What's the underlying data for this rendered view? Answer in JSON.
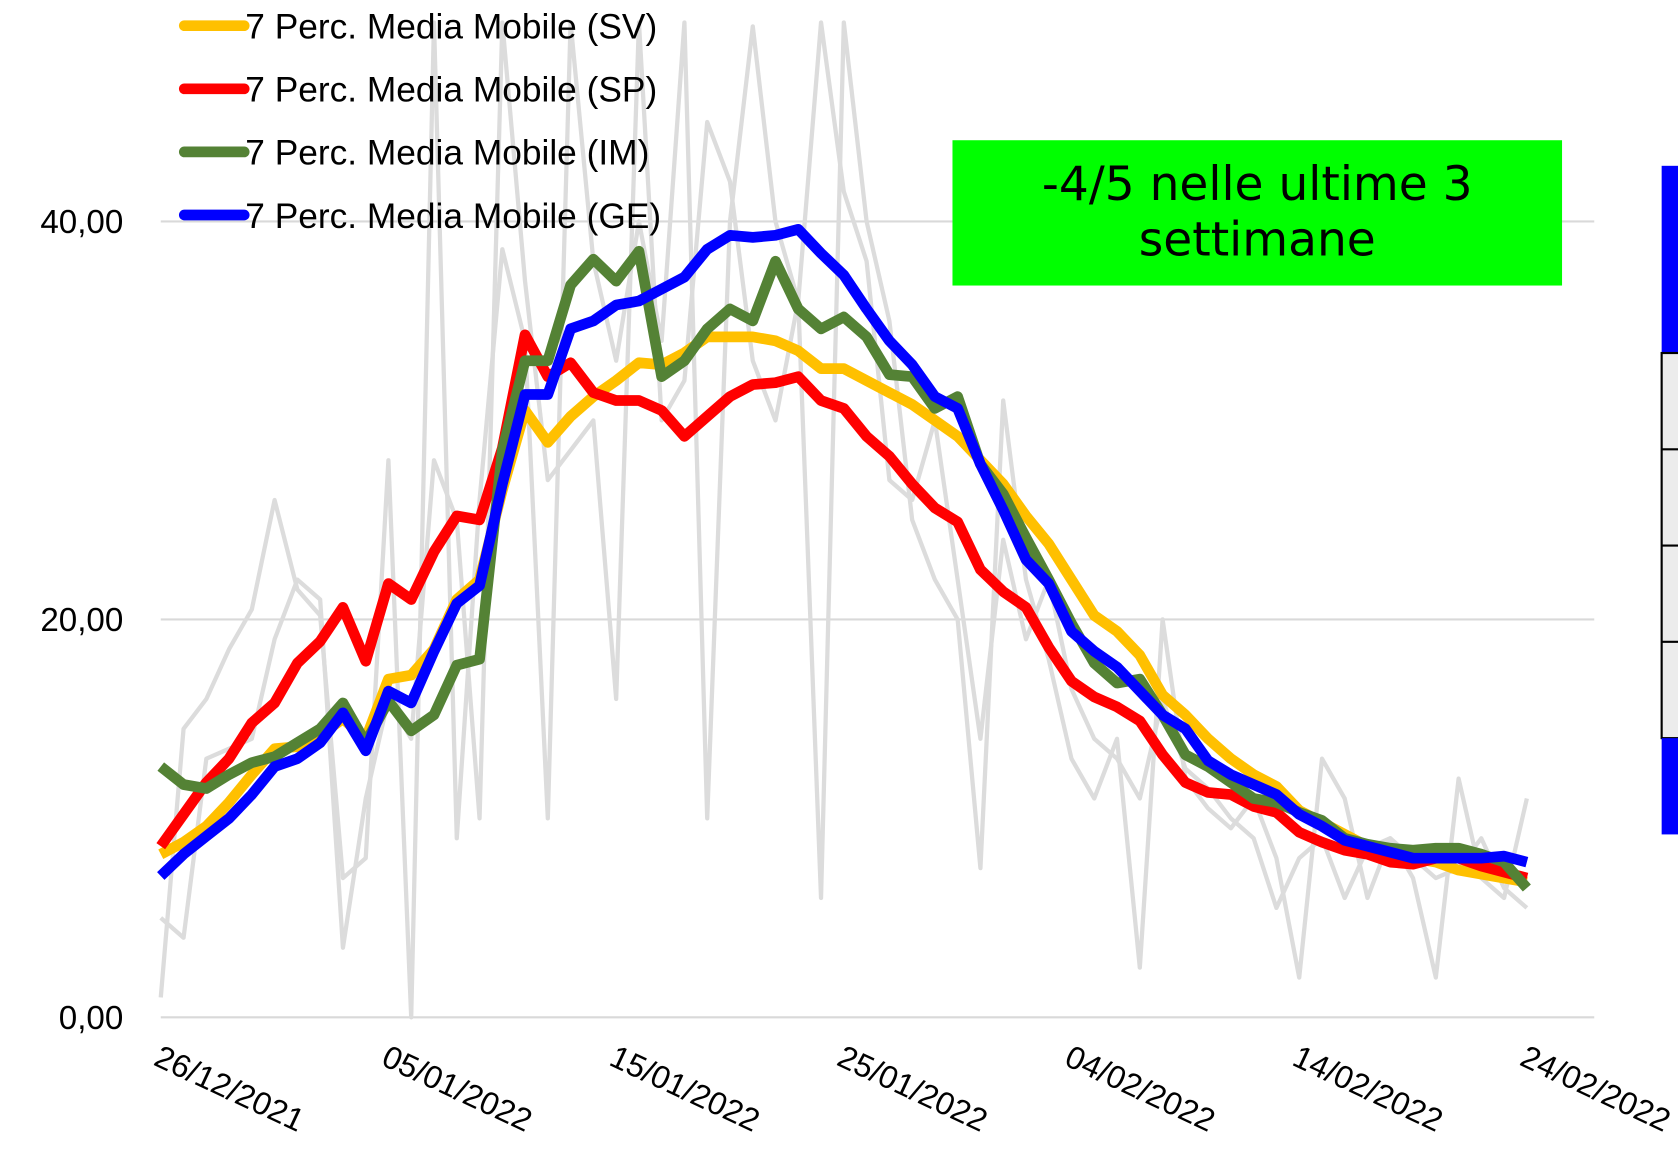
{
  "chart_data": {
    "type": "line",
    "annotation": "-4/5 nelle ultime 3 settimane",
    "categories": [
      "26/12/2021",
      null,
      null,
      null,
      null,
      null,
      null,
      null,
      null,
      null,
      "05/01/2022",
      null,
      null,
      null,
      null,
      null,
      null,
      null,
      null,
      null,
      "15/01/2022",
      null,
      null,
      null,
      null,
      null,
      null,
      null,
      null,
      null,
      "25/01/2022",
      null,
      null,
      null,
      null,
      null,
      null,
      null,
      null,
      null,
      "04/02/2022",
      null,
      null,
      null,
      null,
      null,
      null,
      null,
      null,
      null,
      "14/02/2022",
      null,
      null,
      null,
      null,
      null,
      null,
      null,
      null,
      null,
      "24/02/2022"
    ],
    "ylim": [
      0,
      50
    ],
    "yticks": [
      {
        "value": 0,
        "label": "0,00"
      },
      {
        "value": 20,
        "label": "20,00"
      },
      {
        "value": 40,
        "label": "40,00"
      }
    ],
    "grid": true,
    "legend": "upper left",
    "series": [
      {
        "color": "#dcdcdc",
        "values": [
          1.0,
          14.5,
          16.0,
          18.5,
          20.5,
          26.0,
          21.5,
          20.2,
          7.0,
          8.0,
          28.0,
          0.0,
          50.0,
          9.0,
          26.0,
          38.6,
          34.0,
          10.0,
          50.0,
          38.0,
          33.0,
          40.0,
          34.0,
          50.0,
          10.0,
          40.0,
          49.8,
          40.0,
          36.0,
          6.0,
          50.0,
          40.0,
          35.0,
          25.0,
          22.0,
          20.0,
          7.5,
          31.0,
          22.0,
          18.0,
          13.0,
          11.0,
          14.0,
          2.5,
          20.0,
          12.0,
          10.5,
          9.5,
          11.0,
          8.0,
          2.0,
          13.0,
          11.0,
          6.0,
          9.0,
          7.0,
          2.0,
          12.0,
          7.0,
          6.0,
          11.0
        ]
      },
      {
        "color": "#dcdcdc",
        "values": [
          5.0,
          4.0,
          13.0,
          13.5,
          14.0,
          19.0,
          22.0,
          21.0,
          3.5,
          11.0,
          16.0,
          14.0,
          28.0,
          25.0,
          10.0,
          50.0,
          37.0,
          27.0,
          28.5,
          30.0,
          16.0,
          50.0,
          30.0,
          32.0,
          45.0,
          42.0,
          33.0,
          30.0,
          36.0,
          50.0,
          41.5,
          38.0,
          27.0,
          26.0,
          30.0,
          22.0,
          14.0,
          24.0,
          19.0,
          22.0,
          16.5,
          14.0,
          13.0,
          11.0,
          16.0,
          12.5,
          11.5,
          10.0,
          9.0,
          5.5,
          8.0,
          9.0,
          6.0,
          8.5,
          9.0,
          8.0,
          7.0,
          7.5,
          9.0,
          6.5,
          5.5
        ]
      },
      {
        "name": "7 Perc. Media Mobile (SV)",
        "color": "#ffc000",
        "values": [
          8.2,
          8.8,
          9.6,
          10.8,
          12.2,
          13.5,
          13.6,
          14.2,
          15.0,
          14.0,
          17.0,
          17.2,
          18.5,
          21.0,
          22.0,
          26.5,
          30.5,
          28.9,
          30.2,
          31.2,
          32.0,
          32.9,
          32.8,
          33.4,
          34.2,
          34.2,
          34.2,
          34.0,
          33.5,
          32.6,
          32.6,
          32.0,
          31.4,
          30.8,
          30.0,
          29.2,
          28.0,
          26.8,
          25.2,
          23.8,
          22.0,
          20.2,
          19.4,
          18.2,
          16.2,
          15.2,
          14.0,
          13.0,
          12.2,
          11.6,
          10.4,
          9.8,
          9.2,
          8.6,
          8.2,
          8.0,
          7.8,
          7.4,
          7.2,
          7.0,
          6.8
        ]
      },
      {
        "name": "7 Perc. Media Mobile (SP)",
        "color": "#ff0000",
        "values": [
          8.6,
          10.2,
          11.8,
          13.0,
          14.8,
          15.8,
          17.8,
          18.9,
          20.6,
          17.9,
          21.8,
          21.0,
          23.4,
          25.2,
          25.0,
          28.6,
          34.3,
          32.2,
          32.9,
          31.4,
          31.0,
          31.0,
          30.5,
          29.2,
          30.2,
          31.2,
          31.8,
          31.9,
          32.2,
          31.0,
          30.6,
          29.2,
          28.2,
          26.8,
          25.6,
          24.9,
          22.5,
          21.4,
          20.6,
          18.6,
          16.9,
          16.1,
          15.6,
          14.9,
          13.2,
          11.8,
          11.3,
          11.2,
          10.6,
          10.3,
          9.3,
          8.8,
          8.4,
          8.2,
          7.8,
          7.7,
          8.0,
          8.0,
          7.6,
          7.3,
          7.0
        ]
      },
      {
        "name": "7 Perc. Media Mobile (IM)",
        "color": "#548235",
        "values": [
          12.6,
          11.7,
          11.5,
          12.2,
          12.8,
          13.1,
          13.8,
          14.5,
          15.8,
          13.8,
          15.9,
          14.4,
          15.2,
          17.7,
          18.0,
          28.5,
          33.0,
          33.0,
          36.8,
          38.1,
          37.0,
          38.5,
          32.2,
          33.0,
          34.6,
          35.6,
          35.0,
          38.0,
          35.6,
          34.6,
          35.2,
          34.2,
          32.3,
          32.2,
          30.6,
          31.2,
          27.8,
          26.3,
          24.1,
          22.0,
          19.8,
          17.8,
          16.8,
          17.0,
          15.2,
          13.2,
          12.6,
          11.8,
          11.0,
          10.8,
          10.3,
          9.9,
          9.0,
          8.7,
          8.5,
          8.4,
          8.5,
          8.5,
          8.2,
          7.8,
          6.5
        ]
      },
      {
        "name": "7 Perc. Media Mobile (GE)",
        "color": "#0000ff",
        "values": [
          7.1,
          8.2,
          9.1,
          10.0,
          11.2,
          12.6,
          13.0,
          13.8,
          15.3,
          13.4,
          16.4,
          15.8,
          18.4,
          20.8,
          21.7,
          26.8,
          31.3,
          31.3,
          34.6,
          35.0,
          35.8,
          36.0,
          36.6,
          37.2,
          38.6,
          39.3,
          39.2,
          39.3,
          39.6,
          38.4,
          37.3,
          35.6,
          34.0,
          32.8,
          31.2,
          30.6,
          27.8,
          25.5,
          23.0,
          21.8,
          19.4,
          18.4,
          17.6,
          16.4,
          15.2,
          14.5,
          12.9,
          12.2,
          11.7,
          11.2,
          10.2,
          9.6,
          8.9,
          8.6,
          8.3,
          8.0,
          8.0,
          8.0,
          8.0,
          8.1,
          7.8
        ]
      }
    ]
  }
}
